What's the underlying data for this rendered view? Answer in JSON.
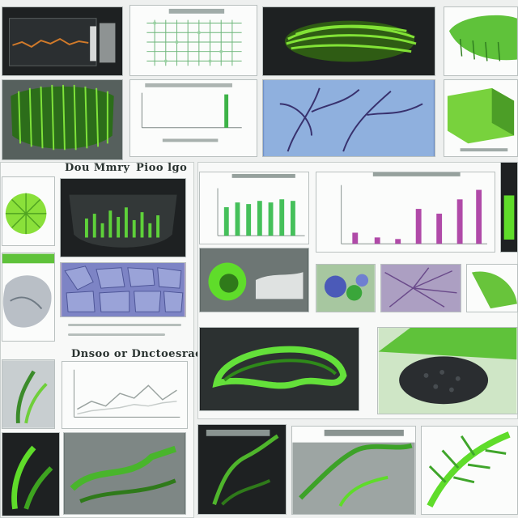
{
  "captions": {
    "left_title": "Dou Mmry",
    "left_title_2": "Pioo lgo",
    "mid_title": "Dnsoo or Dnctoesrae Dcog",
    "colors": {
      "accent_green": "#5fdc2a",
      "dark_bg": "#1e2122",
      "purple": "#b04aa8",
      "blue": "#6f90c8"
    }
  },
  "icons": {
    "chart": "bar-chart-icon",
    "line": "line-chart-icon"
  }
}
